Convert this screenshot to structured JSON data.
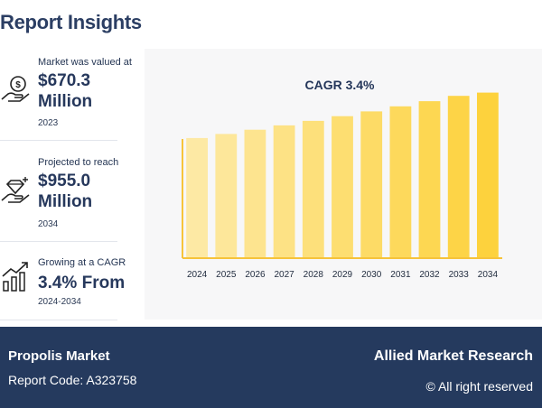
{
  "header": {
    "title": "Report Insights"
  },
  "stats": [
    {
      "label": "Market was valued at",
      "value": "$670.3 Million",
      "year": "2023",
      "icon": "money-hand-icon"
    },
    {
      "label": "Projected to reach",
      "value": "$955.0 Million",
      "year": "2034",
      "icon": "diamond-hand-icon"
    },
    {
      "label": "Growing at a CAGR",
      "value": "3.4% From",
      "year": "2024-2034",
      "icon": "growth-chart-icon"
    }
  ],
  "chart_data": {
    "type": "bar",
    "title": "CAGR 3.4%",
    "categories": [
      "2024",
      "2025",
      "2026",
      "2027",
      "2028",
      "2029",
      "2030",
      "2031",
      "2032",
      "2033",
      "2034"
    ],
    "values": [
      693.1,
      716.7,
      741.0,
      766.2,
      792.3,
      819.2,
      847.1,
      875.9,
      905.7,
      936.5,
      955.0
    ],
    "ylim": [
      0,
      1000
    ],
    "grid": false,
    "colors": {
      "start": "#fde9a4",
      "end": "#fdd23d",
      "axis": "#f6c33a"
    }
  },
  "footer": {
    "market": "Propolis Market",
    "report_code": "Report Code: A323758",
    "brand": "Allied Market Research",
    "rights": "© All right reserved"
  }
}
